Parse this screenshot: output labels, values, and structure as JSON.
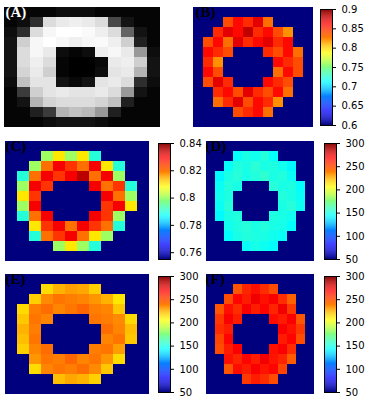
{
  "chart_data": [
    {
      "type": "heatmap",
      "title": "(A)",
      "color": "gray",
      "tick_labels": false,
      "cells": [
        [
          5,
          5,
          5,
          5,
          8,
          8,
          8,
          5,
          5,
          5,
          5,
          5
        ],
        [
          5,
          8,
          20,
          85,
          90,
          92,
          90,
          85,
          30,
          10,
          5,
          5
        ],
        [
          8,
          20,
          85,
          95,
          98,
          98,
          96,
          92,
          85,
          40,
          10,
          5
        ],
        [
          10,
          80,
          95,
          98,
          95,
          92,
          95,
          96,
          92,
          80,
          15,
          5
        ],
        [
          10,
          85,
          95,
          90,
          8,
          5,
          8,
          92,
          95,
          90,
          60,
          8
        ],
        [
          10,
          85,
          92,
          85,
          5,
          3,
          3,
          6,
          90,
          92,
          80,
          10
        ],
        [
          10,
          82,
          90,
          80,
          5,
          3,
          3,
          8,
          88,
          90,
          70,
          10
        ],
        [
          8,
          75,
          88,
          88,
          10,
          6,
          10,
          88,
          90,
          85,
          20,
          8
        ],
        [
          5,
          25,
          80,
          88,
          90,
          88,
          88,
          90,
          85,
          60,
          10,
          5
        ],
        [
          5,
          10,
          70,
          82,
          85,
          85,
          85,
          82,
          75,
          15,
          5,
          5
        ],
        [
          5,
          5,
          15,
          25,
          70,
          75,
          72,
          60,
          15,
          5,
          5,
          5
        ],
        [
          5,
          5,
          5,
          8,
          10,
          10,
          10,
          8,
          5,
          5,
          5,
          5
        ]
      ]
    },
    {
      "type": "heatmap",
      "title": "(B)",
      "color": "jet",
      "tick_labels": false,
      "colorbar": {
        "range": [
          0.6,
          0.9
        ],
        "ticks": [
          0.6,
          0.65,
          0.7,
          0.75,
          0.8,
          0.85,
          0.9
        ]
      },
      "cells": [
        [
          0.6,
          0.6,
          0.6,
          0.6,
          0.6,
          0.6,
          0.6,
          0.6,
          0.6,
          0.6,
          0.6,
          0.6
        ],
        [
          0.6,
          0.6,
          0.6,
          0.84,
          0.86,
          0.85,
          0.87,
          0.83,
          0.6,
          0.6,
          0.6,
          0.6
        ],
        [
          0.6,
          0.6,
          0.85,
          0.87,
          0.86,
          0.88,
          0.85,
          0.86,
          0.84,
          0.82,
          0.6,
          0.6
        ],
        [
          0.6,
          0.84,
          0.86,
          0.83,
          0.87,
          0.85,
          0.86,
          0.87,
          0.85,
          0.86,
          0.6,
          0.6
        ],
        [
          0.6,
          0.86,
          0.85,
          0.84,
          0.6,
          0.6,
          0.6,
          0.85,
          0.84,
          0.86,
          0.83,
          0.6
        ],
        [
          0.6,
          0.85,
          0.82,
          0.6,
          0.6,
          0.6,
          0.6,
          0.6,
          0.86,
          0.85,
          0.84,
          0.6
        ],
        [
          0.6,
          0.86,
          0.84,
          0.6,
          0.6,
          0.6,
          0.6,
          0.6,
          0.83,
          0.86,
          0.84,
          0.6
        ],
        [
          0.6,
          0.84,
          0.87,
          0.85,
          0.6,
          0.6,
          0.6,
          0.86,
          0.85,
          0.84,
          0.6,
          0.6
        ],
        [
          0.6,
          0.6,
          0.85,
          0.86,
          0.84,
          0.87,
          0.85,
          0.84,
          0.86,
          0.83,
          0.6,
          0.6
        ],
        [
          0.6,
          0.6,
          0.83,
          0.85,
          0.87,
          0.84,
          0.86,
          0.85,
          0.82,
          0.6,
          0.6,
          0.6
        ],
        [
          0.6,
          0.6,
          0.6,
          0.6,
          0.84,
          0.85,
          0.86,
          0.83,
          0.6,
          0.6,
          0.6,
          0.6
        ],
        [
          0.6,
          0.6,
          0.6,
          0.6,
          0.6,
          0.6,
          0.6,
          0.6,
          0.6,
          0.6,
          0.6,
          0.6
        ]
      ]
    },
    {
      "type": "heatmap",
      "title": "(C)",
      "color": "jet",
      "tick_labels": false,
      "colorbar": {
        "range": [
          0.755,
          0.84
        ],
        "ticks": [
          0.76,
          0.78,
          0.8,
          0.82,
          0.84
        ]
      },
      "cells": [
        [
          0.755,
          0.755,
          0.755,
          0.755,
          0.755,
          0.755,
          0.755,
          0.755,
          0.755,
          0.755,
          0.755,
          0.755
        ],
        [
          0.755,
          0.755,
          0.755,
          0.8,
          0.81,
          0.8,
          0.81,
          0.79,
          0.755,
          0.755,
          0.755,
          0.755
        ],
        [
          0.755,
          0.755,
          0.8,
          0.82,
          0.83,
          0.825,
          0.82,
          0.83,
          0.81,
          0.79,
          0.755,
          0.755
        ],
        [
          0.755,
          0.79,
          0.82,
          0.83,
          0.825,
          0.83,
          0.835,
          0.82,
          0.83,
          0.8,
          0.755,
          0.755
        ],
        [
          0.755,
          0.8,
          0.83,
          0.825,
          0.755,
          0.755,
          0.755,
          0.83,
          0.82,
          0.825,
          0.79,
          0.755
        ],
        [
          0.755,
          0.81,
          0.825,
          0.755,
          0.755,
          0.755,
          0.755,
          0.755,
          0.83,
          0.82,
          0.8,
          0.755
        ],
        [
          0.755,
          0.8,
          0.83,
          0.755,
          0.755,
          0.755,
          0.755,
          0.755,
          0.825,
          0.83,
          0.81,
          0.755
        ],
        [
          0.755,
          0.79,
          0.82,
          0.83,
          0.755,
          0.755,
          0.755,
          0.83,
          0.825,
          0.8,
          0.755,
          0.755
        ],
        [
          0.755,
          0.755,
          0.81,
          0.825,
          0.83,
          0.82,
          0.83,
          0.825,
          0.82,
          0.79,
          0.755,
          0.755
        ],
        [
          0.755,
          0.755,
          0.79,
          0.82,
          0.825,
          0.83,
          0.82,
          0.81,
          0.8,
          0.755,
          0.755,
          0.755
        ],
        [
          0.755,
          0.755,
          0.755,
          0.755,
          0.8,
          0.81,
          0.8,
          0.79,
          0.755,
          0.755,
          0.755,
          0.755
        ],
        [
          0.755,
          0.755,
          0.755,
          0.755,
          0.755,
          0.755,
          0.755,
          0.755,
          0.755,
          0.755,
          0.755,
          0.755
        ]
      ]
    },
    {
      "type": "heatmap",
      "title": "(D)",
      "color": "jet",
      "tick_labels": false,
      "colorbar": {
        "range": [
          50,
          300
        ],
        "ticks": [
          50,
          100,
          150,
          200,
          250,
          300
        ]
      },
      "cells": [
        [
          50,
          50,
          50,
          50,
          50,
          50,
          50,
          50,
          50,
          50,
          50,
          50
        ],
        [
          50,
          50,
          50,
          145,
          150,
          148,
          152,
          145,
          50,
          50,
          50,
          50
        ],
        [
          50,
          50,
          145,
          152,
          150,
          154,
          150,
          151,
          148,
          142,
          50,
          50
        ],
        [
          50,
          142,
          150,
          153,
          149,
          152,
          155,
          150,
          152,
          146,
          50,
          50
        ],
        [
          50,
          146,
          152,
          150,
          50,
          50,
          50,
          153,
          150,
          151,
          144,
          50
        ],
        [
          50,
          148,
          151,
          50,
          50,
          50,
          50,
          50,
          152,
          150,
          146,
          50
        ],
        [
          50,
          146,
          153,
          50,
          50,
          50,
          50,
          50,
          150,
          153,
          147,
          50
        ],
        [
          50,
          143,
          150,
          152,
          50,
          50,
          50,
          151,
          150,
          148,
          50,
          50
        ],
        [
          50,
          50,
          148,
          151,
          153,
          150,
          152,
          150,
          149,
          144,
          50,
          50
        ],
        [
          50,
          50,
          144,
          150,
          152,
          151,
          150,
          148,
          146,
          50,
          50,
          50
        ],
        [
          50,
          50,
          50,
          50,
          146,
          149,
          147,
          144,
          50,
          50,
          50,
          50
        ],
        [
          50,
          50,
          50,
          50,
          50,
          50,
          50,
          50,
          50,
          50,
          50,
          50
        ]
      ]
    },
    {
      "type": "heatmap",
      "title": "(E)",
      "color": "jet",
      "tick_labels": false,
      "colorbar": {
        "range": [
          50,
          300
        ],
        "ticks": [
          50,
          100,
          150,
          200,
          250,
          300
        ]
      },
      "cells": [
        [
          50,
          50,
          50,
          50,
          50,
          50,
          50,
          50,
          50,
          50,
          50,
          50
        ],
        [
          50,
          50,
          50,
          215,
          225,
          230,
          228,
          218,
          50,
          50,
          50,
          50
        ],
        [
          50,
          50,
          218,
          235,
          240,
          238,
          236,
          232,
          225,
          212,
          50,
          50
        ],
        [
          50,
          215,
          238,
          242,
          236,
          240,
          244,
          238,
          236,
          220,
          50,
          50
        ],
        [
          50,
          220,
          240,
          236,
          50,
          50,
          50,
          240,
          238,
          235,
          215,
          50
        ],
        [
          50,
          225,
          238,
          50,
          50,
          50,
          50,
          50,
          242,
          236,
          222,
          50
        ],
        [
          50,
          222,
          240,
          50,
          50,
          50,
          50,
          50,
          236,
          240,
          220,
          50
        ],
        [
          50,
          218,
          236,
          242,
          50,
          50,
          50,
          238,
          240,
          230,
          50,
          50
        ],
        [
          50,
          50,
          232,
          240,
          238,
          244,
          236,
          240,
          232,
          215,
          50,
          50
        ],
        [
          50,
          50,
          215,
          236,
          240,
          238,
          242,
          235,
          220,
          50,
          50,
          50
        ],
        [
          50,
          50,
          50,
          50,
          222,
          228,
          225,
          218,
          50,
          50,
          50,
          50
        ],
        [
          50,
          50,
          50,
          50,
          50,
          50,
          50,
          50,
          50,
          50,
          50,
          50
        ]
      ]
    },
    {
      "type": "heatmap",
      "title": "(F)",
      "color": "jet",
      "tick_labels": false,
      "colorbar": {
        "range": [
          50,
          300
        ],
        "ticks": [
          50,
          100,
          150,
          200,
          250,
          300
        ]
      },
      "cells": [
        [
          50,
          50,
          50,
          50,
          50,
          50,
          50,
          50,
          50,
          50,
          50,
          50
        ],
        [
          50,
          50,
          50,
          248,
          260,
          265,
          258,
          250,
          50,
          50,
          50,
          50
        ],
        [
          50,
          50,
          250,
          268,
          262,
          272,
          265,
          270,
          258,
          245,
          50,
          50
        ],
        [
          50,
          248,
          265,
          258,
          270,
          262,
          268,
          260,
          272,
          255,
          50,
          50
        ],
        [
          50,
          255,
          270,
          262,
          50,
          50,
          50,
          266,
          262,
          270,
          248,
          50
        ],
        [
          50,
          258,
          262,
          50,
          50,
          50,
          50,
          50,
          270,
          264,
          255,
          50
        ],
        [
          50,
          252,
          268,
          50,
          50,
          50,
          50,
          50,
          262,
          268,
          250,
          50
        ],
        [
          50,
          250,
          262,
          270,
          50,
          50,
          50,
          265,
          270,
          258,
          50,
          50
        ],
        [
          50,
          50,
          265,
          260,
          268,
          262,
          272,
          264,
          260,
          246,
          50,
          50
        ],
        [
          50,
          50,
          248,
          266,
          262,
          270,
          264,
          268,
          252,
          50,
          50,
          50
        ],
        [
          50,
          50,
          50,
          50,
          255,
          262,
          258,
          250,
          50,
          50,
          50,
          50
        ],
        [
          50,
          50,
          50,
          50,
          50,
          50,
          50,
          50,
          50,
          50,
          50,
          50
        ]
      ]
    }
  ]
}
